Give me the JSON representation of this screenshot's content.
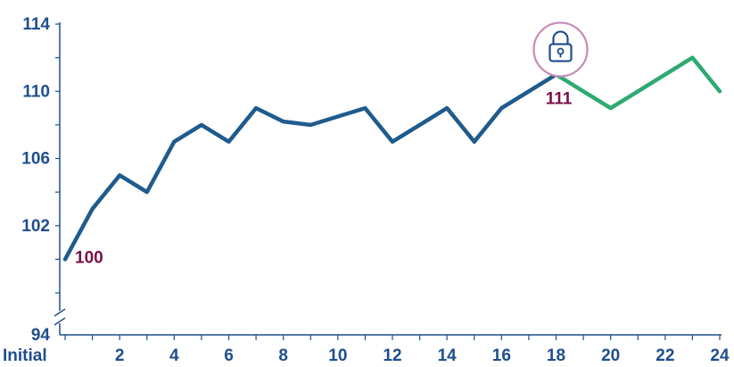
{
  "chart_data": {
    "type": "line",
    "y_axis": {
      "tick_labels": [
        "94",
        "102",
        "106",
        "110",
        "114"
      ],
      "ylim": [
        98,
        114
      ],
      "break_label": "94",
      "axis_break": true
    },
    "x_axis": {
      "tick_labels": [
        "Initial",
        "2",
        "4",
        "6",
        "8",
        "10",
        "12",
        "14",
        "16",
        "18",
        "20",
        "22",
        "24"
      ],
      "tick_values": [
        0,
        2,
        4,
        6,
        8,
        10,
        12,
        14,
        16,
        18,
        20,
        22,
        24
      ]
    },
    "series": [
      {
        "x": [
          0,
          1,
          2,
          3,
          4,
          5,
          6,
          7,
          8,
          9,
          10,
          11,
          12,
          13,
          14,
          15,
          16,
          17,
          18
        ],
        "values": [
          100,
          103,
          105,
          104,
          107,
          108,
          107,
          109,
          108.2,
          108,
          108.5,
          109,
          107,
          108,
          109,
          107,
          109,
          110,
          111
        ],
        "color": "#1f5b8c"
      },
      {
        "x": [
          18,
          19,
          20,
          21,
          22,
          23,
          24
        ],
        "values": [
          111,
          110,
          109,
          110,
          111,
          112,
          110
        ],
        "color": "#2eaa72"
      }
    ],
    "data_labels": [
      {
        "x": 0,
        "y": 100,
        "text": "100"
      },
      {
        "x": 18,
        "y": 111,
        "text": "111"
      }
    ],
    "annotation_icon": {
      "name": "lock-icon",
      "x": 18,
      "y": 111
    },
    "colors": {
      "axis": "#1f4e8c",
      "tick_text": "#1f4e8c",
      "data_label": "#7a0f45",
      "lock_ring": "#c78bb4"
    },
    "grid": false,
    "legend": "none"
  }
}
